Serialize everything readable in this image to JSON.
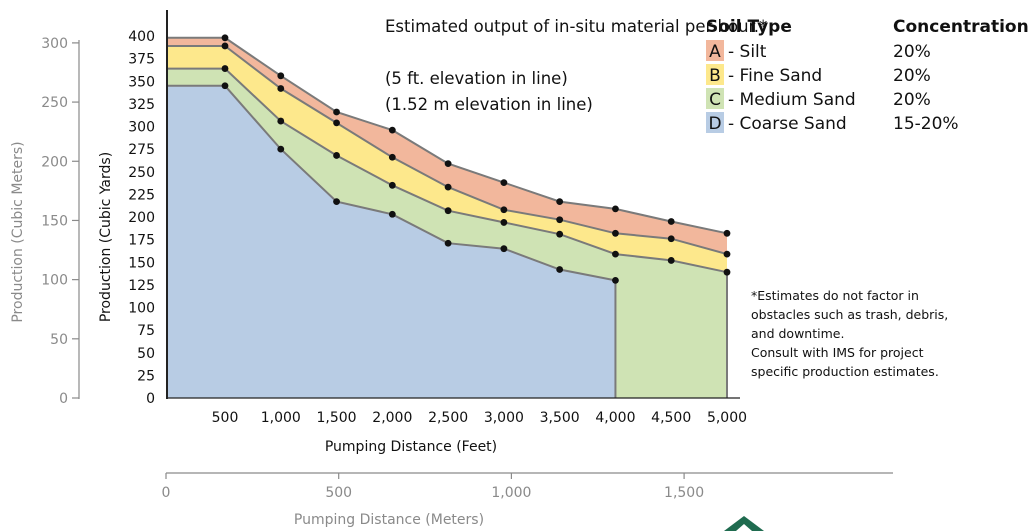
{
  "chart_data": {
    "type": "area",
    "stacked": true,
    "title": "Estimated output of in-situ material per hour.*",
    "subtitle_lines": [
      "(5 ft. elevation in line)",
      "(1.52 m elevation in line)"
    ],
    "xlabel": "Pumping Distance (Feet)",
    "ylabel": "Production (Cubic Yards)",
    "x_tick_labels": [
      "500",
      "1,000",
      "1,500",
      "2,000",
      "2,500",
      "3,000",
      "3,500",
      "4,000",
      "4,500",
      "5,000"
    ],
    "y_tick_labels": [
      "0",
      "25",
      "50",
      "75",
      "100",
      "125",
      "150",
      "175",
      "200",
      "225",
      "250",
      "275",
      "300",
      "325",
      "350",
      "375",
      "400"
    ],
    "ylim": [
      0,
      400
    ],
    "secondary_y": {
      "label": "Production (Cubic Meters)",
      "ticks": [
        "0",
        "50",
        "100",
        "150",
        "200",
        "250",
        "300"
      ],
      "ylim": [
        0,
        306
      ]
    },
    "secondary_x": {
      "label": "Pumping Distance (Meters)",
      "ticks": [
        "0",
        "500",
        "1,000",
        "1,500"
      ]
    },
    "x": [
      500,
      1000,
      1500,
      2000,
      2500,
      3000,
      3500,
      4000,
      4500,
      5000
    ],
    "series": [
      {
        "name": "Coarse Sand",
        "letter": "D",
        "color": "#b8cce4",
        "top": [
          345,
          275,
          217,
          203,
          171,
          165,
          142,
          130,
          null,
          null
        ]
      },
      {
        "name": "Medium Sand",
        "letter": "C",
        "color": "#cfe3b4",
        "top": [
          364,
          306,
          268,
          235,
          207,
          194,
          181,
          159,
          152,
          139
        ]
      },
      {
        "name": "Fine Sand",
        "letter": "B",
        "color": "#fde88c",
        "top": [
          389,
          342,
          304,
          266,
          233,
          208,
          197,
          182,
          176,
          159
        ]
      },
      {
        "name": "Silt",
        "letter": "A",
        "color": "#f2b79c",
        "top": [
          398,
          356,
          316,
          296,
          259,
          238,
          217,
          209,
          195,
          182
        ]
      }
    ],
    "legend": {
      "position": "top-right",
      "header_type": "Soil Type",
      "header_conc": "Concentration",
      "items": [
        {
          "letter": "A",
          "name": "- Silt",
          "conc": "20%",
          "color": "#f2b79c"
        },
        {
          "letter": "B",
          "name": "- Fine Sand",
          "conc": "20%",
          "color": "#fde88c"
        },
        {
          "letter": "C",
          "name": "- Medium Sand",
          "conc": "20%",
          "color": "#cfe3b4"
        },
        {
          "letter": "D",
          "name": "- Coarse Sand",
          "conc": "15-20%",
          "color": "#b8cce4"
        }
      ]
    },
    "footnote": [
      "*Estimates do not factor in",
      "obstacles such as trash, debris,",
      "and downtime.",
      "Consult with IMS for project",
      "specific production estimates."
    ]
  }
}
